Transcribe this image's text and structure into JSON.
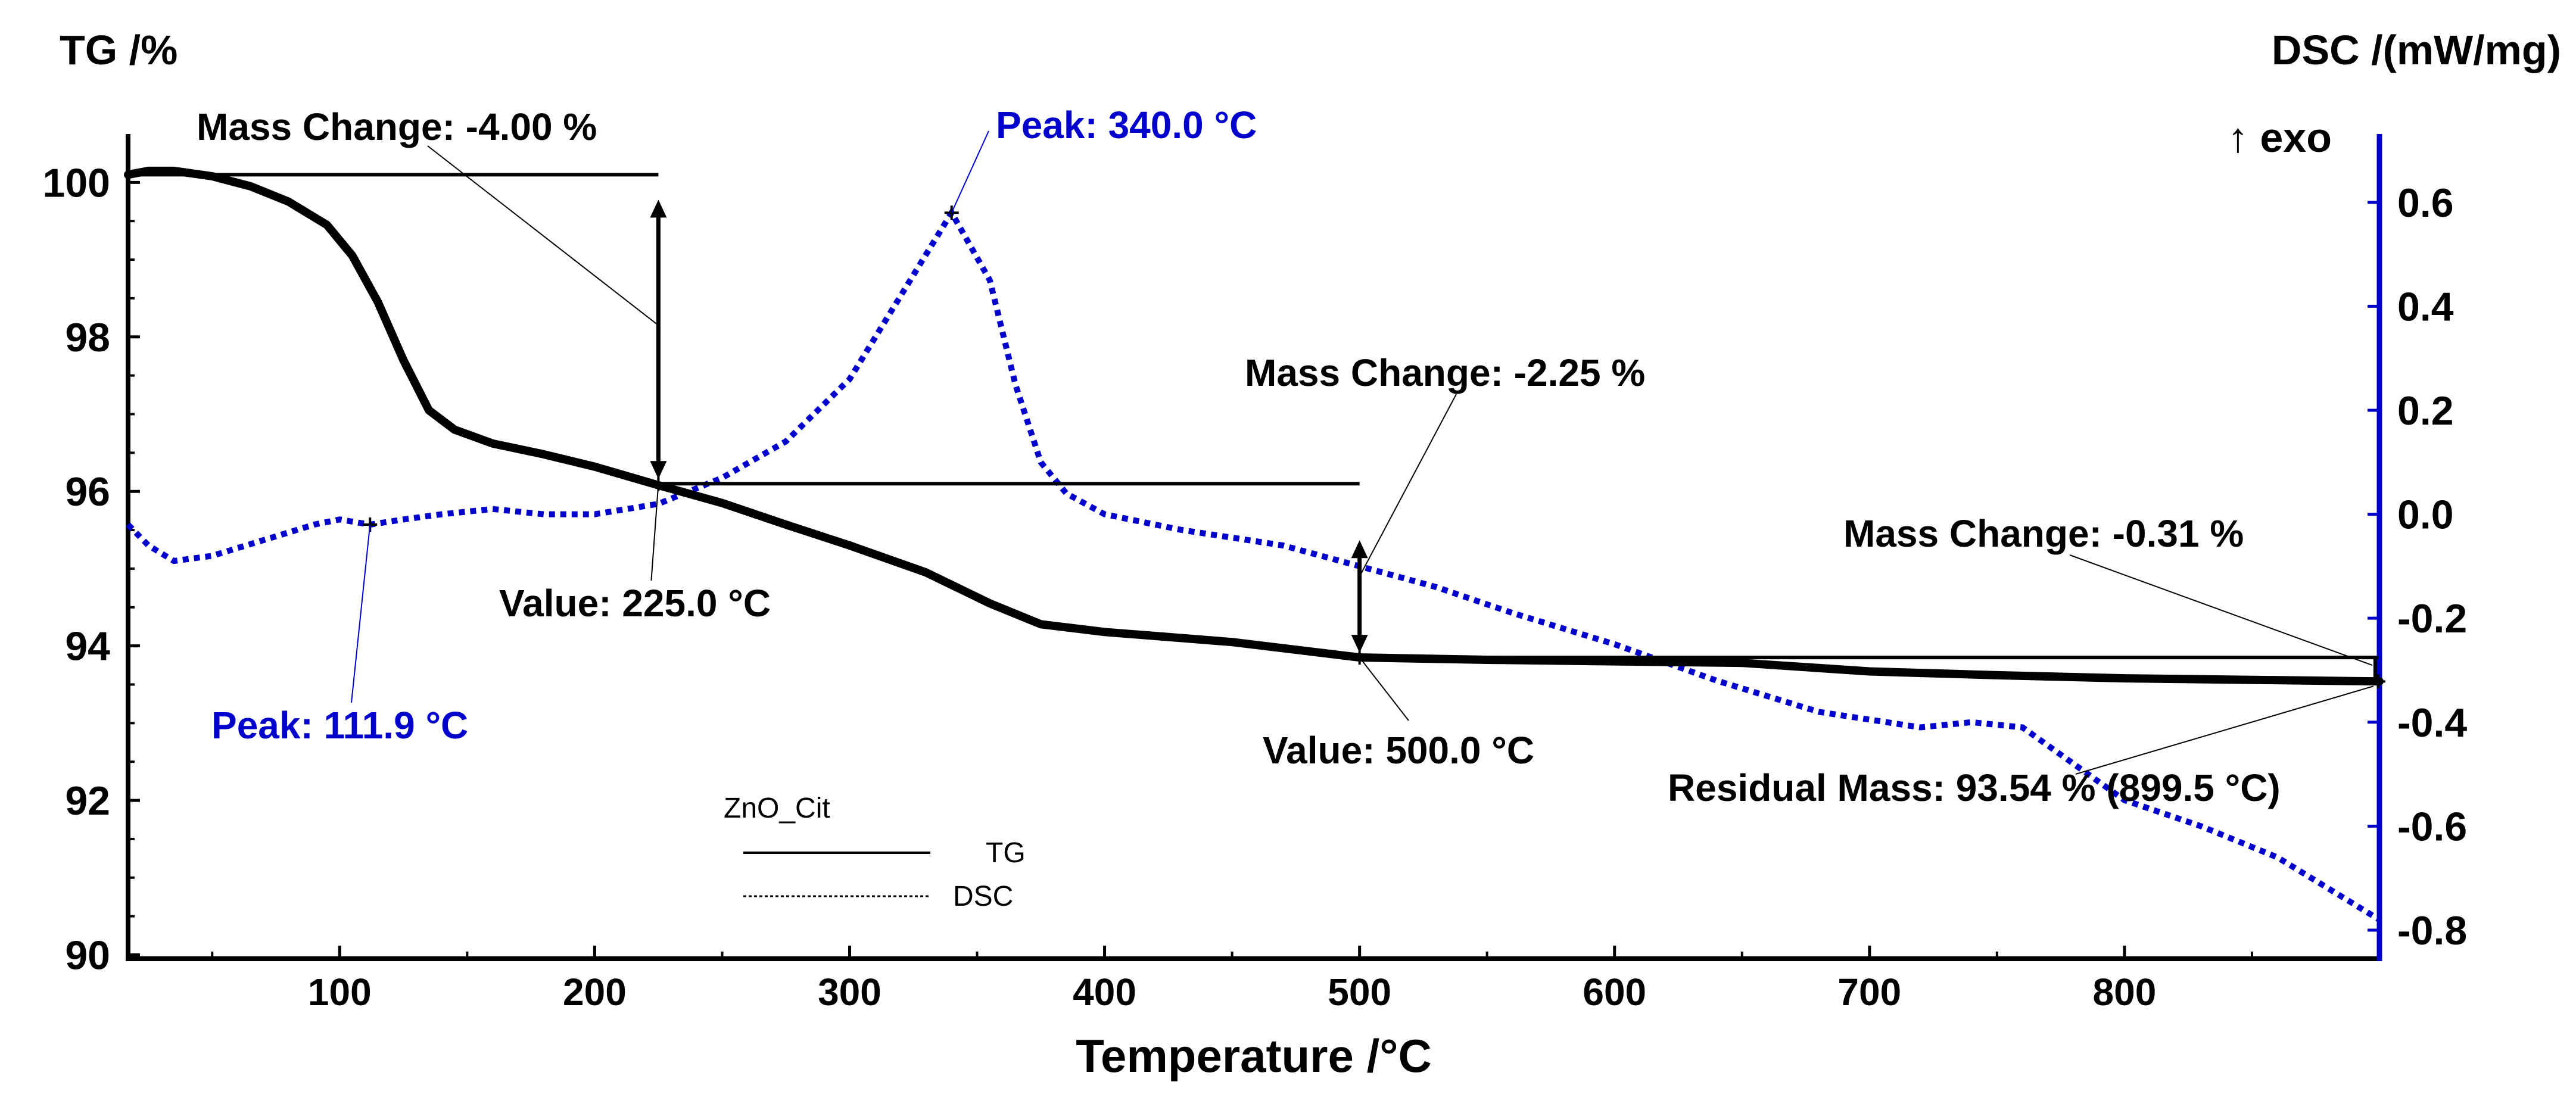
{
  "chart_data": {
    "type": "line",
    "title": "",
    "xlabel": "Temperature /°C",
    "y_left_label": "TG /%",
    "y_right_label": "DSC /(mW/mg)",
    "exo_label": "↑ exo",
    "xlim": [
      17,
      900
    ],
    "ylim_left": [
      89.95,
      100.55
    ],
    "ylim_right": [
      -0.855,
      0.72
    ],
    "x_ticks": [
      100,
      200,
      300,
      400,
      500,
      600,
      700,
      800
    ],
    "x_tick_labels": [
      "100",
      "200",
      "300",
      "400",
      "500",
      "600",
      "700",
      "800"
    ],
    "y_left_ticks": [
      90,
      92,
      94,
      96,
      98,
      100
    ],
    "y_left_tick_labels": [
      "90",
      "92",
      "94",
      "96",
      "98",
      "100"
    ],
    "y_right_ticks": [
      -0.8,
      -0.6,
      -0.4,
      -0.2,
      0.0,
      0.2,
      0.4,
      0.6
    ],
    "y_right_tick_labels": [
      "-0.8",
      "-0.6",
      "-0.4",
      "-0.2",
      "0.0",
      "0.2",
      "0.4",
      "0.6"
    ],
    "legend": {
      "title": "ZnO_Cit",
      "placement": "bottom-center",
      "entries": [
        "TG",
        "DSC"
      ]
    },
    "series": [
      {
        "name": "TG",
        "axis": "left",
        "color": "#000000",
        "x": [
          17,
          25,
          35,
          50,
          65,
          80,
          95,
          105,
          115,
          125,
          135,
          145,
          160,
          180,
          200,
          225,
          250,
          275,
          300,
          330,
          355,
          375,
          400,
          450,
          500,
          550,
          600,
          650,
          700,
          750,
          800,
          850,
          900
        ],
        "y": [
          100.1,
          100.15,
          100.15,
          100.08,
          99.95,
          99.75,
          99.45,
          99.05,
          98.45,
          97.7,
          97.05,
          96.8,
          96.62,
          96.48,
          96.32,
          96.08,
          95.85,
          95.57,
          95.3,
          94.95,
          94.55,
          94.28,
          94.18,
          94.05,
          93.85,
          93.82,
          93.8,
          93.78,
          93.67,
          93.62,
          93.58,
          93.56,
          93.54
        ]
      },
      {
        "name": "DSC",
        "axis": "right",
        "color": "#0000cc",
        "x": [
          17,
          25,
          35,
          50,
          70,
          90,
          100,
          111.9,
          125,
          140,
          160,
          180,
          200,
          225,
          250,
          275,
          300,
          320,
          340,
          355,
          365,
          375,
          385,
          400,
          430,
          470,
          500,
          530,
          560,
          600,
          640,
          680,
          720,
          740,
          760,
          780,
          800,
          830,
          860,
          880,
          900
        ],
        "y": [
          -0.02,
          -0.06,
          -0.09,
          -0.08,
          -0.05,
          -0.02,
          -0.01,
          -0.02,
          -0.01,
          0.0,
          0.01,
          0.0,
          0.0,
          0.02,
          0.07,
          0.14,
          0.26,
          0.42,
          0.58,
          0.45,
          0.25,
          0.1,
          0.04,
          0.0,
          -0.03,
          -0.06,
          -0.1,
          -0.14,
          -0.19,
          -0.25,
          -0.32,
          -0.38,
          -0.41,
          -0.4,
          -0.41,
          -0.48,
          -0.55,
          -0.6,
          -0.66,
          -0.72,
          -0.78
        ]
      }
    ],
    "annotations": [
      {
        "id": "mc1",
        "text": "Mass Change: -4.00 %",
        "color": "#000000",
        "from_temp": 17,
        "to_temp": 225,
        "from_mass": 100.1,
        "to_mass": 96.1
      },
      {
        "id": "mc2",
        "text": "Mass Change: -2.25 %",
        "color": "#000000",
        "from_temp": 225,
        "to_temp": 500,
        "from_mass": 96.1,
        "to_mass": 93.85
      },
      {
        "id": "mc3",
        "text": "Mass Change: -0.31 %",
        "color": "#000000",
        "from_temp": 500,
        "to_temp": 899.5,
        "from_mass": 93.85,
        "to_mass": 93.54
      },
      {
        "id": "val1",
        "text": "Value: 225.0 °C",
        "color": "#000000",
        "temp": 225.0,
        "mass": 96.1
      },
      {
        "id": "val2",
        "text": "Value: 500.0 °C",
        "color": "#000000",
        "temp": 500.0,
        "mass": 93.85
      },
      {
        "id": "peak1",
        "text": "Peak: 340.0 °C",
        "color": "#0000cc",
        "temp": 340.0,
        "dsc": 0.58
      },
      {
        "id": "peak2",
        "text": "Peak: 111.9 °C",
        "color": "#0000cc",
        "temp": 111.9,
        "dsc": -0.02
      },
      {
        "id": "resid",
        "text": "Residual Mass: 93.54 % (899.5 °C)",
        "color": "#000000",
        "temp": 899.5,
        "mass": 93.54
      }
    ]
  }
}
